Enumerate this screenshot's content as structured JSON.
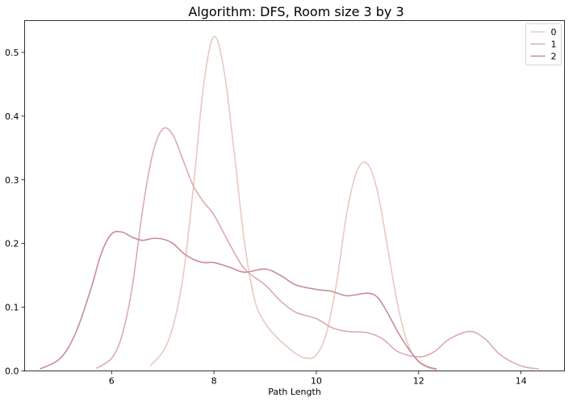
{
  "chart_data": {
    "type": "line",
    "title": "Algorithm: DFS, Room size 3 by 3",
    "xlabel": "Path Length",
    "ylabel": "",
    "xlim": [
      4.3,
      14.85
    ],
    "ylim": [
      0,
      0.55
    ],
    "xticks": [
      6,
      8,
      10,
      12,
      14
    ],
    "yticks": [
      0.0,
      0.1,
      0.2,
      0.3,
      0.4,
      0.5
    ],
    "grid": false,
    "legend_position": "top-right",
    "series": [
      {
        "name": "0",
        "color": "#ebc8c0",
        "x": [
          6.75,
          7.0,
          7.2,
          7.4,
          7.6,
          7.8,
          8.0,
          8.2,
          8.4,
          8.6,
          8.8,
          9.0,
          9.2,
          9.4,
          9.6,
          9.8,
          10.0,
          10.2,
          10.4,
          10.6,
          10.8,
          11.0,
          11.2,
          11.4,
          11.6,
          11.8,
          12.0,
          12.2,
          12.35
        ],
        "y": [
          0.008,
          0.03,
          0.07,
          0.15,
          0.29,
          0.45,
          0.525,
          0.47,
          0.34,
          0.2,
          0.11,
          0.075,
          0.055,
          0.04,
          0.027,
          0.02,
          0.025,
          0.06,
          0.14,
          0.25,
          0.315,
          0.325,
          0.28,
          0.19,
          0.1,
          0.04,
          0.014,
          0.005,
          0.002
        ]
      },
      {
        "name": "1",
        "color": "#dcaab2",
        "x": [
          5.7,
          6.0,
          6.2,
          6.4,
          6.6,
          6.8,
          7.0,
          7.2,
          7.4,
          7.6,
          7.8,
          8.0,
          8.3,
          8.6,
          9.0,
          9.3,
          9.6,
          10.0,
          10.3,
          10.6,
          11.0,
          11.3,
          11.6,
          12.0,
          12.3,
          12.6,
          13.0,
          13.3,
          13.6,
          14.0,
          14.35
        ],
        "y": [
          0.004,
          0.02,
          0.055,
          0.13,
          0.25,
          0.34,
          0.38,
          0.37,
          0.33,
          0.29,
          0.265,
          0.245,
          0.2,
          0.16,
          0.135,
          0.11,
          0.092,
          0.082,
          0.068,
          0.062,
          0.06,
          0.05,
          0.03,
          0.022,
          0.03,
          0.05,
          0.062,
          0.05,
          0.025,
          0.008,
          0.003
        ]
      },
      {
        "name": "2",
        "color": "#c98b9b",
        "x": [
          4.6,
          5.0,
          5.3,
          5.6,
          5.8,
          6.0,
          6.2,
          6.4,
          6.6,
          6.8,
          7.0,
          7.2,
          7.4,
          7.6,
          7.8,
          8.0,
          8.3,
          8.6,
          9.0,
          9.3,
          9.6,
          10.0,
          10.3,
          10.6,
          11.0,
          11.2,
          11.4,
          11.6,
          11.8,
          12.0,
          12.2,
          12.35
        ],
        "y": [
          0.003,
          0.02,
          0.06,
          0.13,
          0.185,
          0.215,
          0.218,
          0.21,
          0.205,
          0.208,
          0.207,
          0.2,
          0.185,
          0.175,
          0.17,
          0.17,
          0.163,
          0.155,
          0.16,
          0.15,
          0.135,
          0.128,
          0.125,
          0.118,
          0.122,
          0.115,
          0.09,
          0.06,
          0.035,
          0.015,
          0.006,
          0.003
        ]
      }
    ]
  }
}
